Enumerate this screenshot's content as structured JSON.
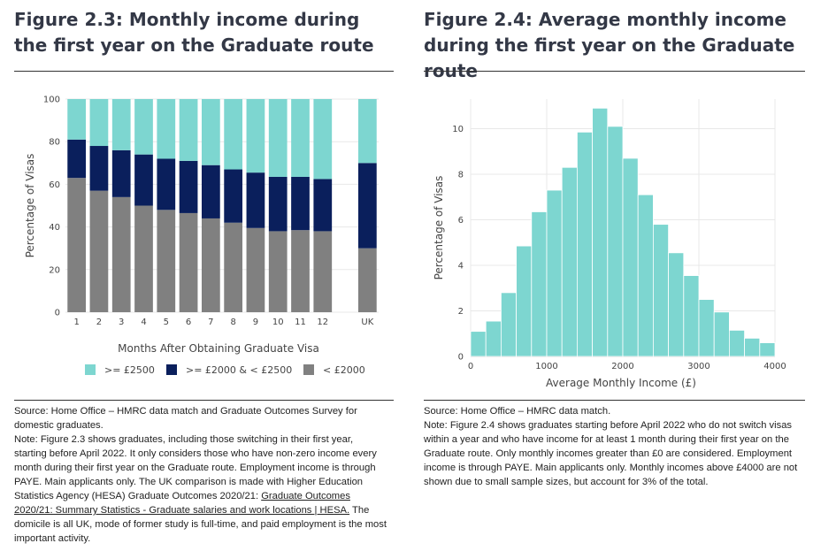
{
  "left": {
    "title": "Figure 2.3: Monthly income during the first year on the Graduate route",
    "source": "Source: Home Office – HMRC data match and Graduate Outcomes Survey for domestic graduates.",
    "note_pre": "Note: Figure 2.3 shows graduates, including those switching in their first year, starting before April 2022. It only considers those who have non-zero income every month during their first year on the Graduate route. Employment income is through PAYE. Main applicants only. The UK comparison is made with Higher Education Statistics Agency (HESA) Graduate Outcomes 2020/21:",
    "link_text": "Graduate Outcomes 2020/21: Summary Statistics - Graduate salaries and work locations | HESA.",
    "note_post": " The domicile is all UK, mode of former study is full-time, and paid employment is the most important activity."
  },
  "right": {
    "title": "Figure 2.4: Average monthly income during the first year on the Graduate route",
    "source": "Source: Home Office – HMRC data match.",
    "note": "Note: Figure 2.4 shows graduates starting before April 2022 who do not switch visas within a year and who have income for at least 1 month during their first year on the Graduate route. Only monthly incomes greater than £0 are considered. Employment income is through PAYE. Main applicants only. Monthly incomes above £4000 are not shown due to small sample sizes, but account for 3% of the total."
  },
  "chart_data": [
    {
      "type": "bar",
      "stacked": true,
      "categories": [
        "1",
        "2",
        "3",
        "4",
        "5",
        "6",
        "7",
        "8",
        "9",
        "10",
        "11",
        "12",
        "UK"
      ],
      "gap_before": "UK",
      "series": [
        {
          "name": " < £2000",
          "color": "#808080",
          "values": [
            63,
            57,
            54,
            50,
            48,
            46.5,
            44,
            42,
            39.5,
            38,
            38.5,
            38,
            30
          ]
        },
        {
          "name": ">= £2000 & < £2500",
          "color": "#0a1f5c",
          "values": [
            18,
            21,
            22,
            24,
            24,
            24.5,
            25,
            25,
            26,
            25.5,
            25,
            24.5,
            40
          ]
        },
        {
          "name": ">= £2500",
          "color": "#7dd6d0",
          "values": [
            19,
            22,
            24,
            26,
            28,
            29,
            31,
            33,
            34.5,
            36.5,
            36.5,
            37.5,
            30
          ]
        }
      ],
      "legend_order": [
        ">= £2500",
        ">= £2000 & < £2500",
        " < £2000"
      ],
      "xlabel": "Months After Obtaining Graduate Visa",
      "ylabel": "Percentage of Visas",
      "ylim": [
        0,
        100
      ],
      "yticks": [
        0,
        20,
        40,
        60,
        80,
        100
      ]
    },
    {
      "type": "bar",
      "histogram": true,
      "bin_width": 200,
      "color": "#7dd6d0",
      "x": [
        0,
        200,
        400,
        600,
        800,
        1000,
        1200,
        1400,
        1600,
        1800,
        2000,
        2200,
        2400,
        2600,
        2800,
        3000,
        3200,
        3400,
        3600,
        3800
      ],
      "values": [
        1.1,
        1.55,
        2.8,
        4.85,
        6.35,
        7.3,
        8.3,
        9.85,
        10.9,
        10.1,
        8.7,
        7.1,
        5.8,
        4.55,
        3.55,
        2.5,
        1.95,
        1.15,
        0.8,
        0.6
      ],
      "xlabel": "Average Monthly Income (£)",
      "ylabel": "Percentage of Visas",
      "xlim": [
        0,
        4000
      ],
      "xticks": [
        0,
        1000,
        2000,
        3000,
        4000
      ],
      "ylim": [
        0,
        11.3
      ],
      "yticks": [
        0,
        2,
        4,
        6,
        8,
        10
      ]
    }
  ]
}
